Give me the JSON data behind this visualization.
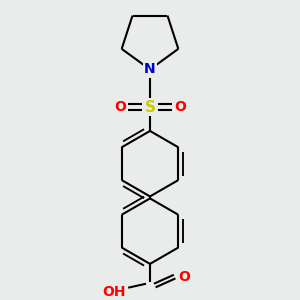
{
  "bg_color": "#eaecec",
  "line_color": "#000000",
  "line_width": 1.5,
  "colors": {
    "N": "#0000cc",
    "O": "#ff0000",
    "S": "#cccc00",
    "C": "#000000"
  },
  "figsize": [
    3.0,
    3.0
  ],
  "dpi": 100
}
